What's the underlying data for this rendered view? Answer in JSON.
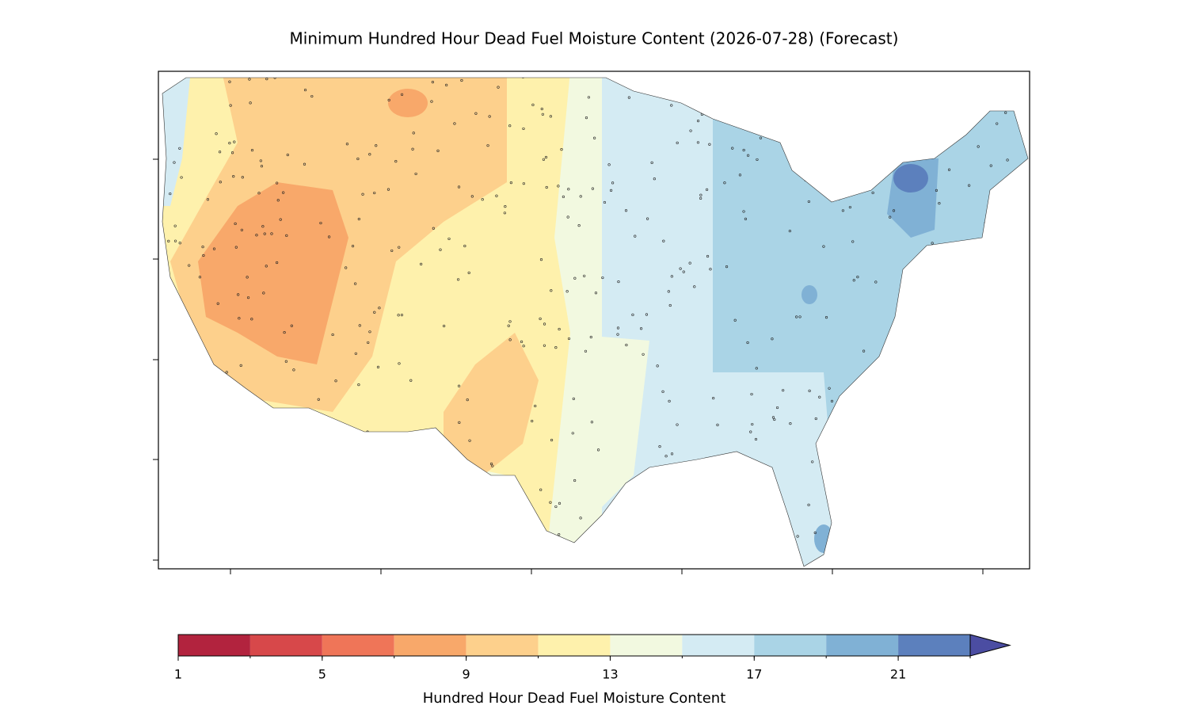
{
  "chart_data": {
    "type": "map",
    "title": "Minimum Hundred Hour Dead Fuel Moisture Content (2026-07-28) (Forecast)",
    "colorbar": {
      "label": "Hundred Hour Dead Fuel Moisture Content",
      "levels": [
        1,
        3,
        5,
        7,
        9,
        11,
        13,
        15,
        17,
        19,
        21,
        23
      ],
      "colors": [
        "#b2233e",
        "#d7484a",
        "#ef7558",
        "#f8a86a",
        "#fdd08c",
        "#fef1ac",
        "#f2f9e0",
        "#d4ebf3",
        "#aad4e6",
        "#80b1d5",
        "#5c80bd",
        "#4b4da2"
      ],
      "ticks": [
        1,
        5,
        9,
        13,
        17,
        21
      ],
      "extend": "max"
    }
  }
}
